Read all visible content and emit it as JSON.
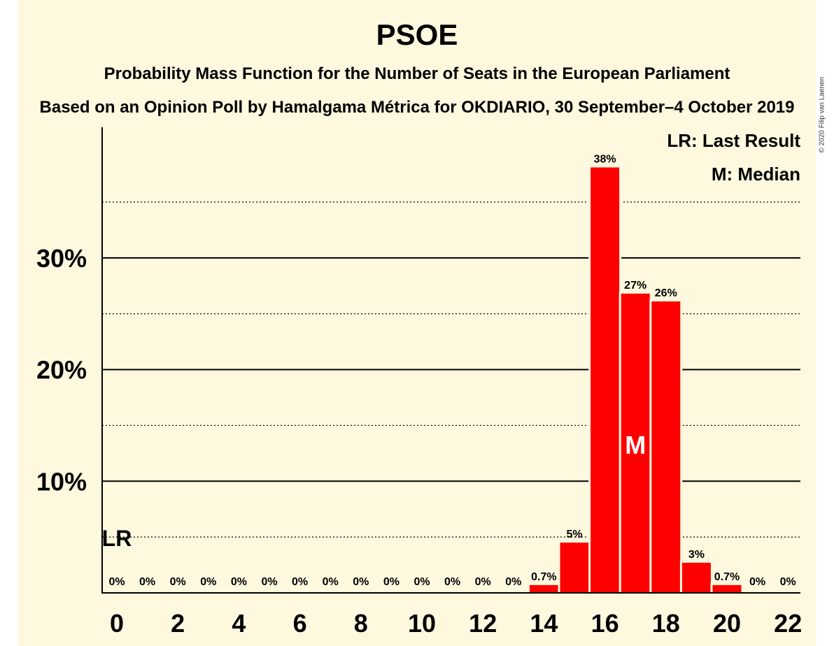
{
  "title": "PSOE",
  "subtitle": "Probability Mass Function for the Number of Seats in the European Parliament",
  "subtitle2": "Based on an Opinion Poll by Hamalgama Métrica for OKDIARIO, 30 September–4 October 2019",
  "copyright": "© 2020 Filip van Laenen",
  "legend": {
    "last_result": "LR: Last Result",
    "median": "M: Median"
  },
  "colors": {
    "bar": "#ff0000",
    "background": "#fdf8de"
  },
  "chart_data": {
    "type": "bar",
    "title": "PSOE",
    "categories": [
      0,
      1,
      2,
      3,
      4,
      5,
      6,
      7,
      8,
      9,
      10,
      11,
      12,
      13,
      14,
      15,
      16,
      17,
      18,
      19,
      20,
      21,
      22
    ],
    "values": [
      0,
      0,
      0,
      0,
      0,
      0,
      0,
      0,
      0,
      0,
      0,
      0,
      0,
      0,
      0.7,
      4.5,
      38.1,
      26.8,
      26.1,
      2.7,
      0.7,
      0,
      0
    ],
    "value_labels": [
      "0%",
      "0%",
      "0%",
      "0%",
      "0%",
      "0%",
      "0%",
      "0%",
      "0%",
      "0%",
      "0%",
      "0%",
      "0%",
      "0%",
      "0.7%",
      "5%",
      "38%",
      "27%",
      "26%",
      "3%",
      "0.7%",
      "0%",
      "0%"
    ],
    "x_tick_labels": [
      "0",
      "2",
      "4",
      "6",
      "8",
      "10",
      "12",
      "14",
      "16",
      "18",
      "20",
      "22"
    ],
    "x_tick_values": [
      0,
      2,
      4,
      6,
      8,
      10,
      12,
      14,
      16,
      18,
      20,
      22
    ],
    "y_tick_labels": [
      "10%",
      "20%",
      "30%"
    ],
    "y_tick_values": [
      10,
      20,
      30
    ],
    "ylim": [
      0,
      41.7
    ],
    "minor_gridlines": [
      5,
      15,
      25,
      35
    ],
    "last_result": {
      "seat": 0,
      "label": "LR"
    },
    "median": {
      "seat": 17,
      "label": "M"
    },
    "grid": true,
    "legend_position": "top-right"
  }
}
